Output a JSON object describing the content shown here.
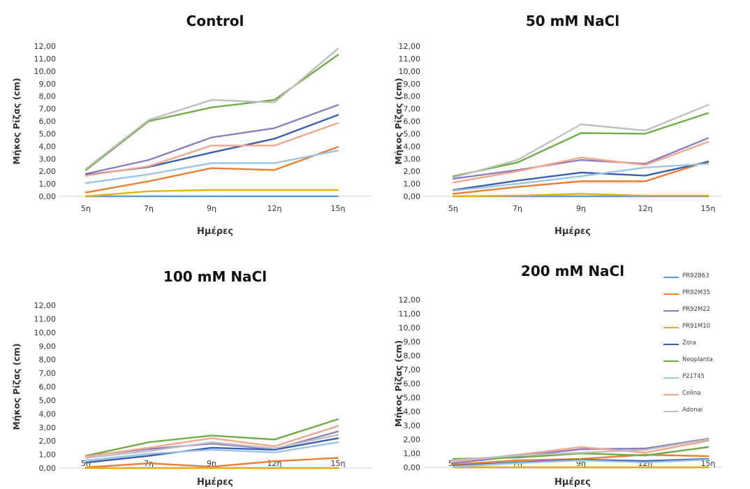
{
  "series_meta": [
    {
      "name": "PR92B63",
      "color": "#5b9bd5"
    },
    {
      "name": "PR92M35",
      "color": "#ed7d31"
    },
    {
      "name": "PR92M22",
      "color": "#8e7cc3"
    },
    {
      "name": "PR91M10",
      "color": "#e8b00b"
    },
    {
      "name": "Zora",
      "color": "#3a5fb0"
    },
    {
      "name": "Neoplanta",
      "color": "#70ad47"
    },
    {
      "name": "P21T45",
      "color": "#9dc3e6"
    },
    {
      "name": "Celina",
      "color": "#f4a58a"
    },
    {
      "name": "Adonai",
      "color": "#bfbfbf"
    }
  ],
  "chart_data": [
    {
      "type": "line",
      "title": "Control",
      "xlabel": "Ημέρες",
      "ylabel": "Μήκος Ρίζας (cm)",
      "categories": [
        "5η",
        "7η",
        "9η",
        "12η",
        "15η"
      ],
      "ylim": [
        0,
        12
      ],
      "yticks": [
        "0,00",
        "1,00",
        "2,00",
        "3,00",
        "4,00",
        "5,00",
        "6,00",
        "7,00",
        "8,00",
        "9,00",
        "10,00",
        "11,00",
        "12,00"
      ],
      "series": [
        {
          "name": "PR92B63",
          "values": [
            0.0,
            0.0,
            0.0,
            0.0,
            0.0
          ]
        },
        {
          "name": "PR92M35",
          "values": [
            0.3,
            1.2,
            2.25,
            2.1,
            3.95
          ]
        },
        {
          "name": "PR92M22",
          "values": [
            1.8,
            2.9,
            4.7,
            5.45,
            7.3
          ]
        },
        {
          "name": "PR91M10",
          "values": [
            0.0,
            0.4,
            0.5,
            0.5,
            0.5
          ]
        },
        {
          "name": "Zora",
          "values": [
            1.7,
            2.35,
            3.5,
            4.6,
            6.5
          ]
        },
        {
          "name": "Neoplanta",
          "values": [
            2.1,
            6.0,
            7.1,
            7.7,
            11.3
          ]
        },
        {
          "name": "P21T45",
          "values": [
            1.05,
            1.75,
            2.65,
            2.65,
            3.65
          ]
        },
        {
          "name": "Celina",
          "values": [
            1.65,
            2.4,
            4.05,
            4.05,
            5.85
          ]
        },
        {
          "name": "Adonai",
          "values": [
            2.2,
            6.1,
            7.7,
            7.5,
            11.8
          ]
        }
      ]
    },
    {
      "type": "line",
      "title": "50 mM NaCl",
      "xlabel": "Ημέρες",
      "ylabel": "Μήκος Ρίζας (cm)",
      "categories": [
        "5η",
        "7η",
        "9η",
        "12η",
        "15η"
      ],
      "ylim": [
        0,
        12
      ],
      "yticks": [
        "0,00",
        "1,00",
        "2,00",
        "3,00",
        "4,00",
        "5,00",
        "6,00",
        "7,00",
        "8,00",
        "9,00",
        "10,00",
        "11,00",
        "12,00"
      ],
      "series": [
        {
          "name": "PR92B63",
          "values": [
            0.0,
            0.0,
            0.0,
            0.0,
            0.0
          ]
        },
        {
          "name": "PR92M35",
          "values": [
            0.2,
            0.75,
            1.2,
            1.2,
            2.8
          ]
        },
        {
          "name": "PR92M22",
          "values": [
            1.4,
            2.1,
            2.9,
            2.6,
            4.65
          ]
        },
        {
          "name": "PR91M10",
          "values": [
            0.0,
            0.05,
            0.2,
            0.05,
            0.05
          ]
        },
        {
          "name": "Zora",
          "values": [
            0.5,
            1.25,
            1.9,
            1.65,
            2.75
          ]
        },
        {
          "name": "Neoplanta",
          "values": [
            1.6,
            2.7,
            5.05,
            5.0,
            6.65
          ]
        },
        {
          "name": "P21T45",
          "values": [
            0.45,
            1.0,
            1.6,
            2.3,
            2.6
          ]
        },
        {
          "name": "Celina",
          "values": [
            1.1,
            2.0,
            3.1,
            2.5,
            4.35
          ]
        },
        {
          "name": "Adonai",
          "values": [
            1.5,
            2.9,
            5.75,
            5.25,
            7.3
          ]
        }
      ]
    },
    {
      "type": "line",
      "title": "100 mM NaCl",
      "xlabel": "Ημέρες",
      "ylabel": "Μήκος Ρίζας (cm)",
      "categories": [
        "5η",
        "7η",
        "9η",
        "12η",
        "15η"
      ],
      "ylim": [
        0,
        12
      ],
      "yticks": [
        "0,00",
        "1,00",
        "2,00",
        "3,00",
        "4,00",
        "5,00",
        "6,00",
        "7,00",
        "8,00",
        "9,00",
        "10,00",
        "11,00",
        "12,00"
      ],
      "series": [
        {
          "name": "PR92B63",
          "values": [
            0.0,
            0.0,
            0.0,
            0.0,
            0.0
          ]
        },
        {
          "name": "PR92M35",
          "values": [
            0.05,
            0.35,
            0.1,
            0.5,
            0.75
          ]
        },
        {
          "name": "PR92M22",
          "values": [
            0.9,
            1.4,
            1.8,
            1.4,
            2.7
          ]
        },
        {
          "name": "PR91M10",
          "values": [
            0.0,
            0.0,
            0.0,
            0.0,
            0.0
          ]
        },
        {
          "name": "Zora",
          "values": [
            0.4,
            0.9,
            1.5,
            1.35,
            2.2
          ]
        },
        {
          "name": "Neoplanta",
          "values": [
            0.9,
            1.9,
            2.4,
            2.1,
            3.6
          ]
        },
        {
          "name": "P21T45",
          "values": [
            0.55,
            1.05,
            1.35,
            1.15,
            1.9
          ]
        },
        {
          "name": "Celina",
          "values": [
            0.85,
            1.5,
            2.2,
            1.6,
            3.1
          ]
        },
        {
          "name": "Adonai",
          "values": [
            0.75,
            1.25,
            1.9,
            1.45,
            2.45
          ]
        }
      ]
    },
    {
      "type": "line",
      "title": "200 mM NaCl",
      "xlabel": "Ημέρες",
      "ylabel": "Μήκος Ρίζας (cm)",
      "categories": [
        "5η",
        "7η",
        "9η",
        "12η",
        "15η"
      ],
      "ylim": [
        0,
        12
      ],
      "yticks": [
        "0,00",
        "1,00",
        "2,00",
        "3,00",
        "4,00",
        "5,00",
        "6,00",
        "7,00",
        "8,00",
        "9,00",
        "10,00",
        "11,00",
        "12,00"
      ],
      "series": [
        {
          "name": "PR92B63",
          "values": [
            0.0,
            0.0,
            0.0,
            0.0,
            0.0
          ]
        },
        {
          "name": "PR92M35",
          "values": [
            0.2,
            0.5,
            0.6,
            0.9,
            0.8
          ]
        },
        {
          "name": "PR92M22",
          "values": [
            0.3,
            0.8,
            1.3,
            1.35,
            2.05
          ]
        },
        {
          "name": "PR91M10",
          "values": [
            0.0,
            0.0,
            0.0,
            0.0,
            0.0
          ]
        },
        {
          "name": "Zora",
          "values": [
            0.1,
            0.35,
            0.55,
            0.45,
            0.6
          ]
        },
        {
          "name": "Neoplanta",
          "values": [
            0.6,
            0.7,
            1.0,
            0.85,
            1.45
          ]
        },
        {
          "name": "P21T45",
          "values": [
            0.05,
            0.3,
            0.5,
            0.35,
            0.55
          ]
        },
        {
          "name": "Celina",
          "values": [
            0.4,
            0.9,
            1.45,
            1.05,
            1.9
          ]
        },
        {
          "name": "Adonai",
          "values": [
            0.5,
            0.85,
            1.05,
            1.25,
            2.0
          ]
        }
      ]
    }
  ]
}
